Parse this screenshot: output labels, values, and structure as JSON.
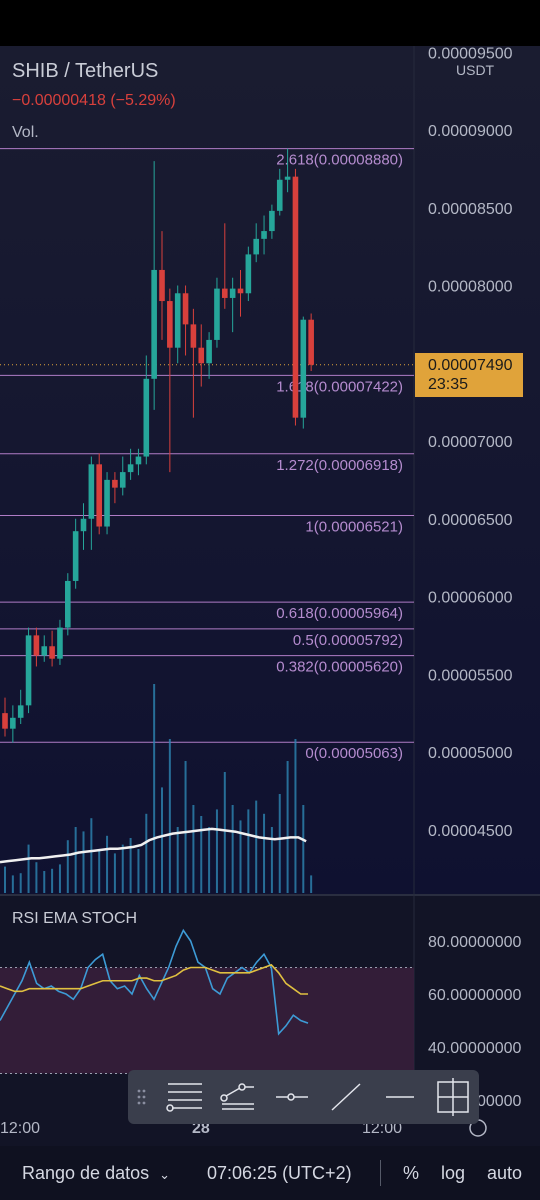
{
  "header": {
    "pair": "SHIB / TetherUS",
    "change": "−0.00000418 (−5.29%)",
    "volume_label": "Vol.",
    "currency": "USDT"
  },
  "price_badge": {
    "price": "0.00007490",
    "countdown": "23:35"
  },
  "rsi_panel": {
    "title": "RSI EMA STOCH"
  },
  "x_axis": {
    "ticks": [
      "12:00",
      "28",
      "12:00"
    ]
  },
  "bottom_bar": {
    "range_label": "Rango de datos",
    "time": "07:06:25 (UTC+2)",
    "percent": "%",
    "log": "log",
    "auto": "auto"
  },
  "toolbar": {
    "tools": [
      "drag-handle-icon",
      "fib-retracement-icon",
      "pitchfork-icon",
      "horizontal-ray-icon",
      "trend-line-icon",
      "horizontal-line-icon",
      "long-position-icon"
    ]
  },
  "chart_data": [
    {
      "type": "candlestick",
      "y_axis": {
        "labels": [
          "0.00009500",
          "0.00009000",
          "0.00008500",
          "0.00008000",
          "0.00007500",
          "0.00007000",
          "0.00006500",
          "0.00006000",
          "0.00005500",
          "0.00005000",
          "0.00004500"
        ],
        "range": [
          4.25e-05,
          9.55e-05
        ]
      },
      "fib_levels": [
        {
          "label": "2.618(0.00008880)",
          "value": 8.88e-05
        },
        {
          "label": "1.618(0.00007422)",
          "value": 7.422e-05
        },
        {
          "label": "1.272(0.00006918)",
          "value": 6.918e-05
        },
        {
          "label": "1(0.00006521)",
          "value": 6.521e-05
        },
        {
          "label": "0.618(0.00005964)",
          "value": 5.964e-05
        },
        {
          "label": "0.5(0.00005792)",
          "value": 5.792e-05
        },
        {
          "label": "0.382(0.00005620)",
          "value": 5.62e-05
        },
        {
          "label": "0(0.00005063)",
          "value": 5.063e-05
        }
      ],
      "last_price": 7.49e-05,
      "colors": {
        "up": "#26a69a",
        "down": "#d8403c",
        "fib": "#b07cc6"
      },
      "candles": [
        {
          "o": 5.25e-05,
          "h": 5.35e-05,
          "l": 5.1e-05,
          "c": 5.15e-05
        },
        {
          "o": 5.15e-05,
          "h": 5.3e-05,
          "l": 5.06e-05,
          "c": 5.22e-05
        },
        {
          "o": 5.22e-05,
          "h": 5.4e-05,
          "l": 5.18e-05,
          "c": 5.3e-05
        },
        {
          "o": 5.3e-05,
          "h": 5.8e-05,
          "l": 5.25e-05,
          "c": 5.75e-05
        },
        {
          "o": 5.75e-05,
          "h": 5.8e-05,
          "l": 5.55e-05,
          "c": 5.62e-05
        },
        {
          "o": 5.62e-05,
          "h": 5.75e-05,
          "l": 5.58e-05,
          "c": 5.68e-05
        },
        {
          "o": 5.68e-05,
          "h": 5.78e-05,
          "l": 5.55e-05,
          "c": 5.6e-05
        },
        {
          "o": 5.6e-05,
          "h": 5.85e-05,
          "l": 5.56e-05,
          "c": 5.8e-05
        },
        {
          "o": 5.8e-05,
          "h": 6.15e-05,
          "l": 5.75e-05,
          "c": 6.1e-05
        },
        {
          "o": 6.1e-05,
          "h": 6.5e-05,
          "l": 6.05e-05,
          "c": 6.42e-05
        },
        {
          "o": 6.42e-05,
          "h": 6.6e-05,
          "l": 6.3e-05,
          "c": 6.5e-05
        },
        {
          "o": 6.5e-05,
          "h": 6.9e-05,
          "l": 6.3e-05,
          "c": 6.85e-05
        },
        {
          "o": 6.85e-05,
          "h": 6.92e-05,
          "l": 6.4e-05,
          "c": 6.45e-05
        },
        {
          "o": 6.45e-05,
          "h": 6.8e-05,
          "l": 6.4e-05,
          "c": 6.75e-05
        },
        {
          "o": 6.75e-05,
          "h": 6.8e-05,
          "l": 6.6e-05,
          "c": 6.7e-05
        },
        {
          "o": 6.7e-05,
          "h": 6.9e-05,
          "l": 6.65e-05,
          "c": 6.8e-05
        },
        {
          "o": 6.8e-05,
          "h": 6.95e-05,
          "l": 6.75e-05,
          "c": 6.85e-05
        },
        {
          "o": 6.85e-05,
          "h": 6.95e-05,
          "l": 6.78e-05,
          "c": 6.9e-05
        },
        {
          "o": 6.9e-05,
          "h": 7.55e-05,
          "l": 6.85e-05,
          "c": 7.4e-05
        },
        {
          "o": 7.4e-05,
          "h": 8.8e-05,
          "l": 7.2e-05,
          "c": 8.1e-05
        },
        {
          "o": 8.1e-05,
          "h": 8.35e-05,
          "l": 7.65e-05,
          "c": 7.9e-05
        },
        {
          "o": 7.9e-05,
          "h": 7.98e-05,
          "l": 6.8e-05,
          "c": 7.6e-05
        },
        {
          "o": 7.6e-05,
          "h": 8e-05,
          "l": 7.5e-05,
          "c": 7.95e-05
        },
        {
          "o": 7.95e-05,
          "h": 8e-05,
          "l": 7.55e-05,
          "c": 7.75e-05
        },
        {
          "o": 7.75e-05,
          "h": 7.85e-05,
          "l": 7.15e-05,
          "c": 7.6e-05
        },
        {
          "o": 7.6e-05,
          "h": 7.75e-05,
          "l": 7.35e-05,
          "c": 7.5e-05
        },
        {
          "o": 7.5e-05,
          "h": 7.7e-05,
          "l": 7.4e-05,
          "c": 7.65e-05
        },
        {
          "o": 7.65e-05,
          "h": 8.05e-05,
          "l": 7.6e-05,
          "c": 7.98e-05
        },
        {
          "o": 7.98e-05,
          "h": 8.4e-05,
          "l": 7.85e-05,
          "c": 7.92e-05
        },
        {
          "o": 7.92e-05,
          "h": 8.05e-05,
          "l": 7.7e-05,
          "c": 7.98e-05
        },
        {
          "o": 7.98e-05,
          "h": 8.1e-05,
          "l": 7.8e-05,
          "c": 7.95e-05
        },
        {
          "o": 7.95e-05,
          "h": 8.25e-05,
          "l": 7.9e-05,
          "c": 8.2e-05
        },
        {
          "o": 8.2e-05,
          "h": 8.4e-05,
          "l": 8.15e-05,
          "c": 8.3e-05
        },
        {
          "o": 8.3e-05,
          "h": 8.45e-05,
          "l": 8.2e-05,
          "c": 8.35e-05
        },
        {
          "o": 8.35e-05,
          "h": 8.52e-05,
          "l": 8.3e-05,
          "c": 8.48e-05
        },
        {
          "o": 8.48e-05,
          "h": 8.75e-05,
          "l": 8.45e-05,
          "c": 8.68e-05
        },
        {
          "o": 8.68e-05,
          "h": 8.88e-05,
          "l": 8.6e-05,
          "c": 8.7e-05
        },
        {
          "o": 8.7e-05,
          "h": 8.75e-05,
          "l": 7.1e-05,
          "c": 7.15e-05
        },
        {
          "o": 7.15e-05,
          "h": 7.8e-05,
          "l": 7.08e-05,
          "c": 7.78e-05
        },
        {
          "o": 7.78e-05,
          "h": 7.82e-05,
          "l": 7.45e-05,
          "c": 7.49e-05
        }
      ],
      "volume": [
        12,
        8,
        9,
        22,
        14,
        10,
        11,
        13,
        24,
        30,
        28,
        34,
        20,
        26,
        18,
        22,
        25,
        20,
        36,
        95,
        48,
        70,
        30,
        60,
        40,
        35,
        30,
        38,
        55,
        40,
        33,
        38,
        42,
        36,
        30,
        45,
        60,
        70,
        40,
        8
      ],
      "volume_ma": [
        22,
        23,
        24,
        25,
        26,
        26,
        27,
        28,
        29,
        30,
        32,
        33,
        34,
        35,
        36,
        36,
        37,
        38,
        40,
        45,
        48,
        50,
        52,
        53,
        54,
        55,
        56,
        57,
        56,
        55,
        54,
        52,
        50,
        48,
        47,
        46,
        47,
        48,
        48,
        44
      ]
    },
    {
      "type": "line",
      "y_axis": {
        "labels": [
          "80.00000000",
          "60.00000000",
          "40.00000000",
          "20.00000000"
        ],
        "range": [
          20,
          88
        ]
      },
      "band": [
        30,
        70
      ],
      "series": [
        {
          "color": "#3d9bd6",
          "values": [
            50,
            55,
            60,
            65,
            72,
            64,
            62,
            63,
            61,
            60,
            58,
            62,
            70,
            73,
            75,
            65,
            62,
            63,
            60,
            67,
            62,
            58,
            64,
            70,
            78,
            84,
            80,
            72,
            70,
            62,
            60,
            66,
            68,
            70,
            68,
            72,
            75,
            70,
            45,
            48,
            52,
            50,
            49
          ]
        },
        {
          "color": "#e0c040",
          "values": [
            63,
            62,
            61,
            61,
            62,
            62,
            62,
            62,
            62,
            62,
            62,
            62,
            63,
            64,
            65,
            65,
            65,
            65,
            65,
            66,
            66,
            65,
            65,
            66,
            67,
            69,
            70,
            70,
            70,
            69,
            68,
            68,
            68,
            68,
            68,
            69,
            70,
            71,
            68,
            64,
            62,
            60,
            60
          ]
        }
      ]
    }
  ]
}
